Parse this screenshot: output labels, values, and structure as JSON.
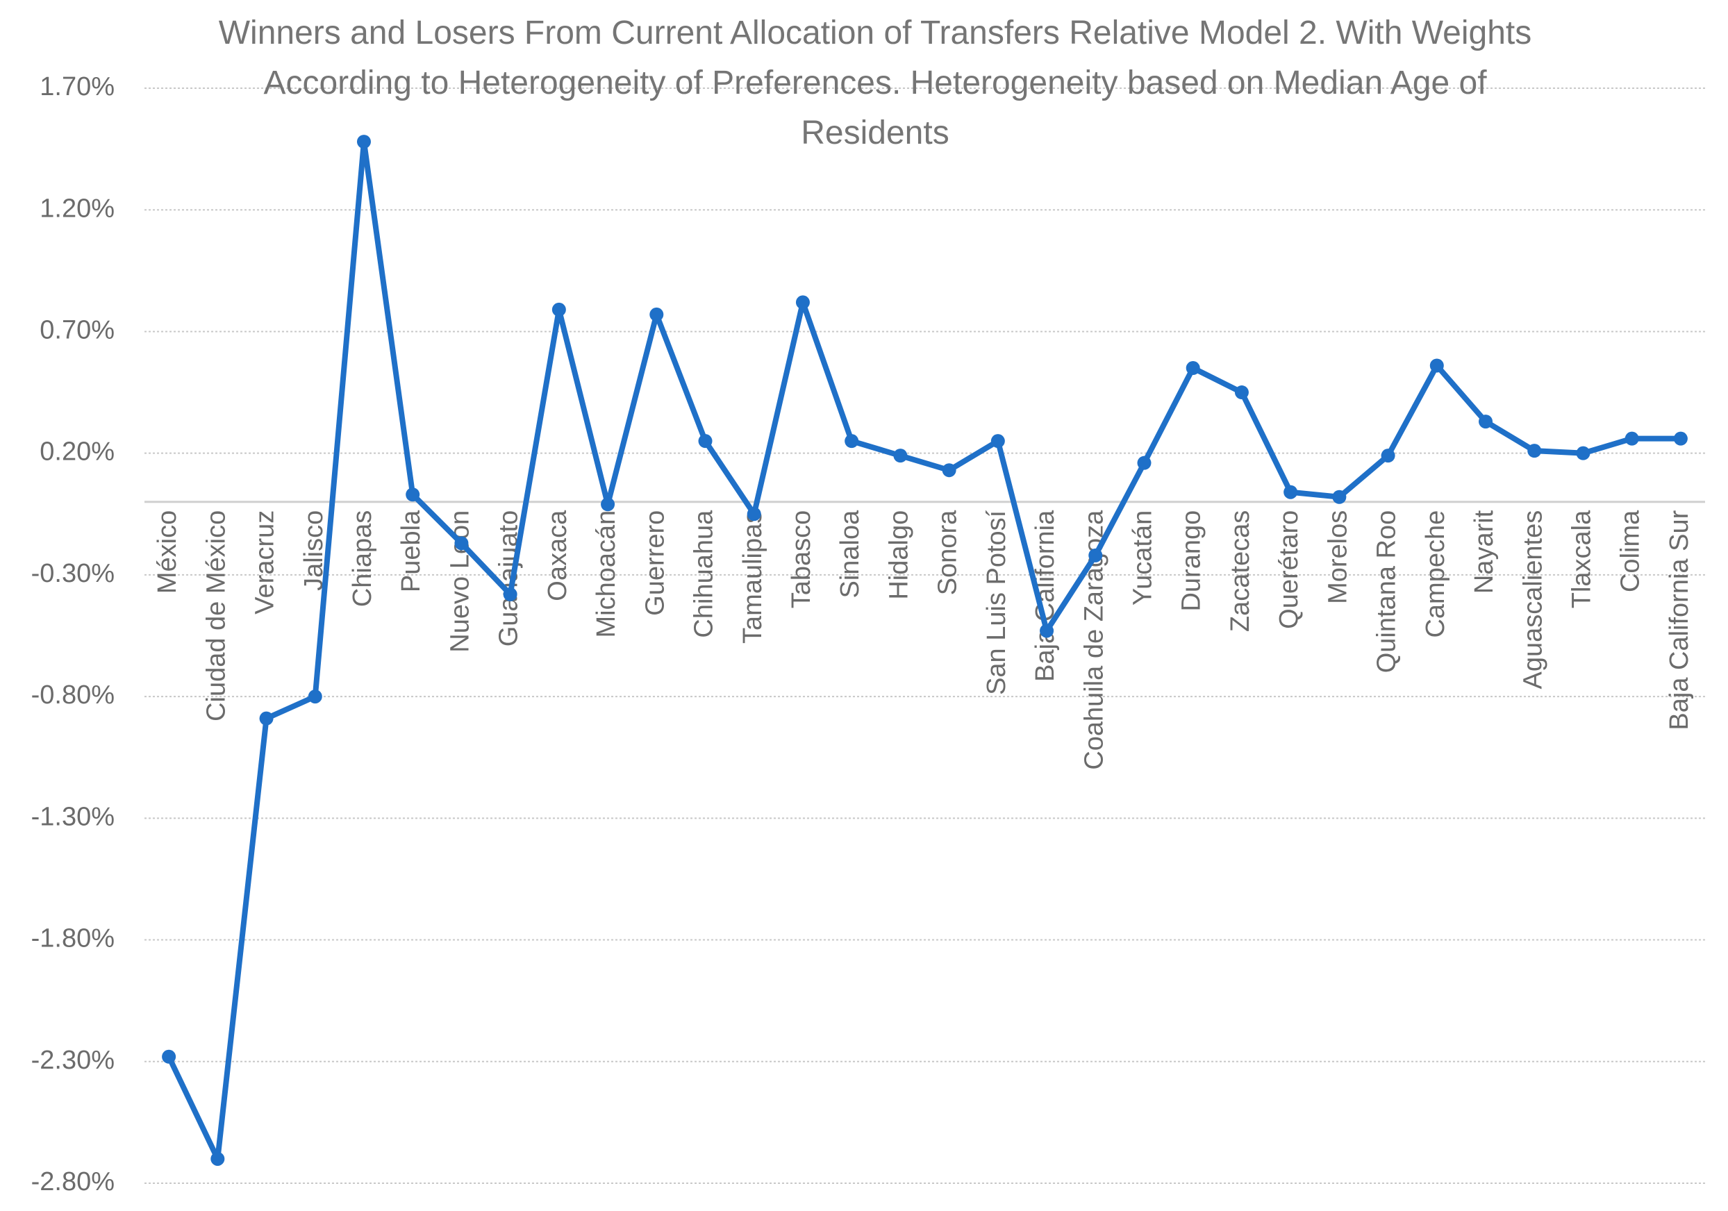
{
  "chart_data": {
    "type": "line",
    "title": "Winners and Losers From Current Allocation of Transfers Relative Model 2. With Weights According to Heterogeneity of Preferences. Heterogeneity based on Median Age of Residents",
    "categories": [
      "México",
      "Ciudad de México",
      "Veracruz",
      "Jalisco",
      "Chiapas",
      "Puebla",
      "Nuevo León",
      "Guanajuato",
      "Oaxaca",
      "Michoacán",
      "Guerrero",
      "Chihuahua",
      "Tamaulipas",
      "Tabasco",
      "Sinaloa",
      "Hidalgo",
      "Sonora",
      "San Luis Potosí",
      "Baja California",
      "Coahuila de Zaragoza",
      "Yucatán",
      "Durango",
      "Zacatecas",
      "Querétaro",
      "Morelos",
      "Quintana Roo",
      "Campeche",
      "Nayarit",
      "Aguascalientes",
      "Tlaxcala",
      "Colima",
      "Baja California Sur"
    ],
    "series": [
      {
        "color": "#1f70c8",
        "values": [
          -2.28,
          -2.7,
          -0.89,
          -0.8,
          1.48,
          0.03,
          -0.17,
          -0.38,
          0.79,
          -0.01,
          0.77,
          0.25,
          -0.05,
          0.82,
          0.25,
          0.19,
          0.13,
          0.25,
          -0.53,
          -0.22,
          0.16,
          0.55,
          0.45,
          0.04,
          0.02,
          0.19,
          0.56,
          0.33,
          0.21,
          0.2,
          0.26,
          0.26
        ]
      }
    ],
    "ylim": [
      -2.8,
      1.7
    ],
    "yticks": [
      {
        "value": -2.8,
        "label": "-2.80%"
      },
      {
        "value": -2.3,
        "label": "-2.30%"
      },
      {
        "value": -1.8,
        "label": "-1.80%"
      },
      {
        "value": -1.3,
        "label": "-1.30%"
      },
      {
        "value": -0.8,
        "label": "-0.80%"
      },
      {
        "value": -0.3,
        "label": "-0.30%"
      },
      {
        "value": 0.2,
        "label": "0.20%"
      },
      {
        "value": 0.7,
        "label": "0.70%"
      },
      {
        "value": 1.2,
        "label": "1.20%"
      },
      {
        "value": 1.7,
        "label": "1.70%"
      }
    ],
    "grid": true
  }
}
